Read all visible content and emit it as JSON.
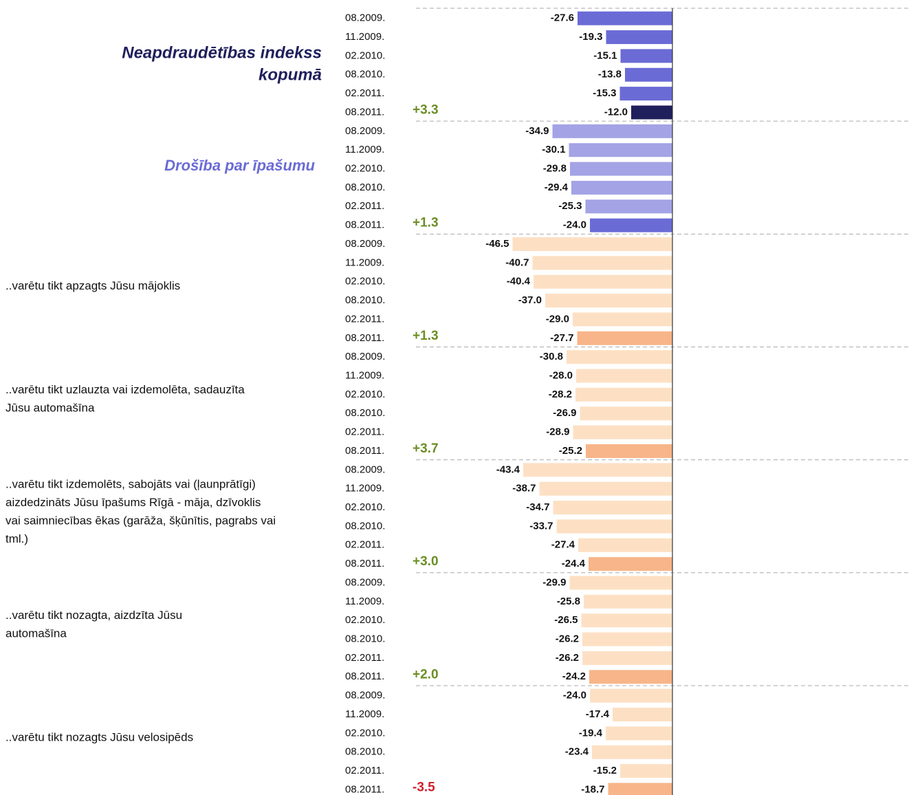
{
  "chart_data": {
    "type": "bar",
    "xlim": [
      -50,
      0
    ],
    "groups": [
      {
        "label_lines": [
          "Neapdraudētības indekss",
          "kopumā"
        ],
        "label_style": "main",
        "categories": [
          "08.2009.",
          "11.2009.",
          "02.2010.",
          "08.2010.",
          "02.2011.",
          "08.2011."
        ],
        "values": [
          -27.6,
          -19.3,
          -15.1,
          -13.8,
          -15.3,
          -12.0
        ],
        "value_labels": [
          "-27.6",
          "-19.3",
          "-15.1",
          "-13.8",
          "-15.3",
          "-12.0"
        ],
        "colors": [
          "#6b6bd6",
          "#6b6bd6",
          "#6b6bd6",
          "#6b6bd6",
          "#6b6bd6",
          "#1f1f5c"
        ],
        "change": {
          "value": 3.3,
          "label": "+3.3"
        },
        "change_color": "#6b8e23"
      },
      {
        "label_lines": [
          "Drošība par īpašumu"
        ],
        "label_style": "sub",
        "categories": [
          "08.2009.",
          "11.2009.",
          "02.2010.",
          "08.2010.",
          "02.2011.",
          "08.2011."
        ],
        "values": [
          -34.9,
          -30.1,
          -29.8,
          -29.4,
          -25.3,
          -24.0
        ],
        "value_labels": [
          "-34.9",
          "-30.1",
          "-29.8",
          "-29.4",
          "-25.3",
          "-24.0"
        ],
        "colors": [
          "#a3a3e6",
          "#a3a3e6",
          "#a3a3e6",
          "#a3a3e6",
          "#a3a3e6",
          "#6b6bd6"
        ],
        "change": {
          "value": 1.3,
          "label": "+1.3"
        },
        "change_color": "#6b8e23"
      },
      {
        "label_lines": [
          "..varētu tikt apzagts Jūsu mājoklis"
        ],
        "label_style": "plain",
        "categories": [
          "08.2009.",
          "11.2009.",
          "02.2010.",
          "08.2010.",
          "02.2011.",
          "08.2011."
        ],
        "values": [
          -46.5,
          -40.7,
          -40.4,
          -37.0,
          -29.0,
          -27.7
        ],
        "value_labels": [
          "-46.5",
          "-40.7",
          "-40.4",
          "-37.0",
          "-29.0",
          "-27.7"
        ],
        "colors": [
          "#fde0c4",
          "#fde0c4",
          "#fde0c4",
          "#fde0c4",
          "#fde0c4",
          "#f7b589"
        ],
        "change": {
          "value": 1.3,
          "label": "+1.3"
        },
        "change_color": "#6b8e23"
      },
      {
        "label_lines": [
          "..varētu tikt uzlauzta vai izdemolēta, sadauzīta",
          "Jūsu automašīna"
        ],
        "label_style": "plain",
        "categories": [
          "08.2009.",
          "11.2009.",
          "02.2010.",
          "08.2010.",
          "02.2011.",
          "08.2011."
        ],
        "values": [
          -30.8,
          -28.0,
          -28.2,
          -26.9,
          -28.9,
          -25.2
        ],
        "value_labels": [
          "-30.8",
          "-28.0",
          "-28.2",
          "-26.9",
          "-28.9",
          "-25.2"
        ],
        "colors": [
          "#fde0c4",
          "#fde0c4",
          "#fde0c4",
          "#fde0c4",
          "#fde0c4",
          "#f7b589"
        ],
        "change": {
          "value": 3.7,
          "label": "+3.7"
        },
        "change_color": "#6b8e23"
      },
      {
        "label_lines": [
          "..varētu tikt izdemolēts, sabojāts vai (ļaunprātīgi)",
          "aizdedzināts Jūsu īpašums Rīgā - māja, dzīvoklis",
          "vai saimniecības ēkas (garāža, šķūnītis, pagrabs vai",
          "tml.)"
        ],
        "label_style": "plain",
        "categories": [
          "08.2009.",
          "11.2009.",
          "02.2010.",
          "08.2010.",
          "02.2011.",
          "08.2011."
        ],
        "values": [
          -43.4,
          -38.7,
          -34.7,
          -33.7,
          -27.4,
          -24.4
        ],
        "value_labels": [
          "-43.4",
          "-38.7",
          "-34.7",
          "-33.7",
          "-27.4",
          "-24.4"
        ],
        "colors": [
          "#fde0c4",
          "#fde0c4",
          "#fde0c4",
          "#fde0c4",
          "#fde0c4",
          "#f7b589"
        ],
        "change": {
          "value": 3.0,
          "label": "+3.0"
        },
        "change_color": "#6b8e23"
      },
      {
        "label_lines": [
          "..varētu tikt nozagta, aizdzīta Jūsu",
          "automašīna"
        ],
        "label_style": "plain",
        "categories": [
          "08.2009.",
          "11.2009.",
          "02.2010.",
          "08.2010.",
          "02.2011.",
          "08.2011."
        ],
        "values": [
          -29.9,
          -25.8,
          -26.5,
          -26.2,
          -26.2,
          -24.2
        ],
        "value_labels": [
          "-29.9",
          "-25.8",
          "-26.5",
          "-26.2",
          "-26.2",
          "-24.2"
        ],
        "colors": [
          "#fde0c4",
          "#fde0c4",
          "#fde0c4",
          "#fde0c4",
          "#fde0c4",
          "#f7b589"
        ],
        "change": {
          "value": 2.0,
          "label": "+2.0"
        },
        "change_color": "#6b8e23"
      },
      {
        "label_lines": [
          "..varētu tikt nozagts Jūsu velosipēds"
        ],
        "label_style": "plain",
        "categories": [
          "08.2009.",
          "11.2009.",
          "02.2010.",
          "08.2010.",
          "02.2011.",
          "08.2011."
        ],
        "values": [
          -24.0,
          -17.4,
          -19.4,
          -23.4,
          -15.2,
          -18.7
        ],
        "value_labels": [
          "-24.0",
          "-17.4",
          "-19.4",
          "-23.4",
          "-15.2",
          "-18.7"
        ],
        "colors": [
          "#fde0c4",
          "#fde0c4",
          "#fde0c4",
          "#fde0c4",
          "#fde0c4",
          "#f7b589"
        ],
        "change": {
          "value": -3.5,
          "label": "-3.5"
        },
        "change_color": "#d0202e"
      }
    ]
  }
}
